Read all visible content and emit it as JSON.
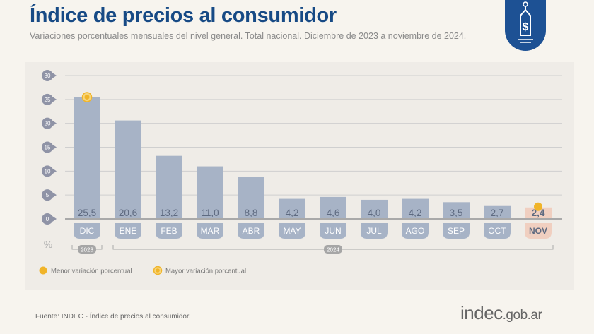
{
  "header": {
    "title": "Índice de precios al consumidor",
    "subtitle": "Variaciones porcentuales mensuales del nivel general. Total nacional. Diciembre de 2023 a noviembre de 2024.",
    "badge_icon": "price-tag-dollar-icon"
  },
  "chart_data": {
    "type": "bar",
    "categories": [
      "DIC",
      "ENE",
      "FEB",
      "MAR",
      "ABR",
      "MAY",
      "JUN",
      "JUL",
      "AGO",
      "SEP",
      "OCT",
      "NOV"
    ],
    "values": [
      25.5,
      20.6,
      13.2,
      11.0,
      8.8,
      4.2,
      4.6,
      4.0,
      4.2,
      3.5,
      2.7,
      2.4
    ],
    "data_labels": [
      "25,5",
      "20,6",
      "13,2",
      "11,0",
      "8,8",
      "4,2",
      "4,6",
      "4,0",
      "4,2",
      "3,5",
      "2,7",
      "2,4"
    ],
    "ylim": [
      0,
      30
    ],
    "yticks": [
      "0",
      "5",
      "10",
      "15",
      "20",
      "25",
      "30"
    ],
    "ylabel": "%",
    "grid": true,
    "year_groups": [
      {
        "label": "2023",
        "months": 1
      },
      {
        "label": "2024",
        "months": 11
      }
    ],
    "highlight_index": 11,
    "max_index": 0,
    "min_index": 11,
    "colors": {
      "bar": "#a7b3c6",
      "highlight_bar": "#f0cfc0",
      "marker": "#f0b429",
      "label": "#5e6a80"
    },
    "legend": [
      {
        "label": "Menor variación porcentual",
        "marker": "filled-dot"
      },
      {
        "label": "Mayor variación porcentual",
        "marker": "ringed-dot"
      }
    ],
    "legend_position": "bottom-left"
  },
  "footer": {
    "source": "Fuente: INDEC - Índice de precios al consumidor.",
    "logo_main": "indec",
    "logo_domain": ".gob.ar"
  }
}
